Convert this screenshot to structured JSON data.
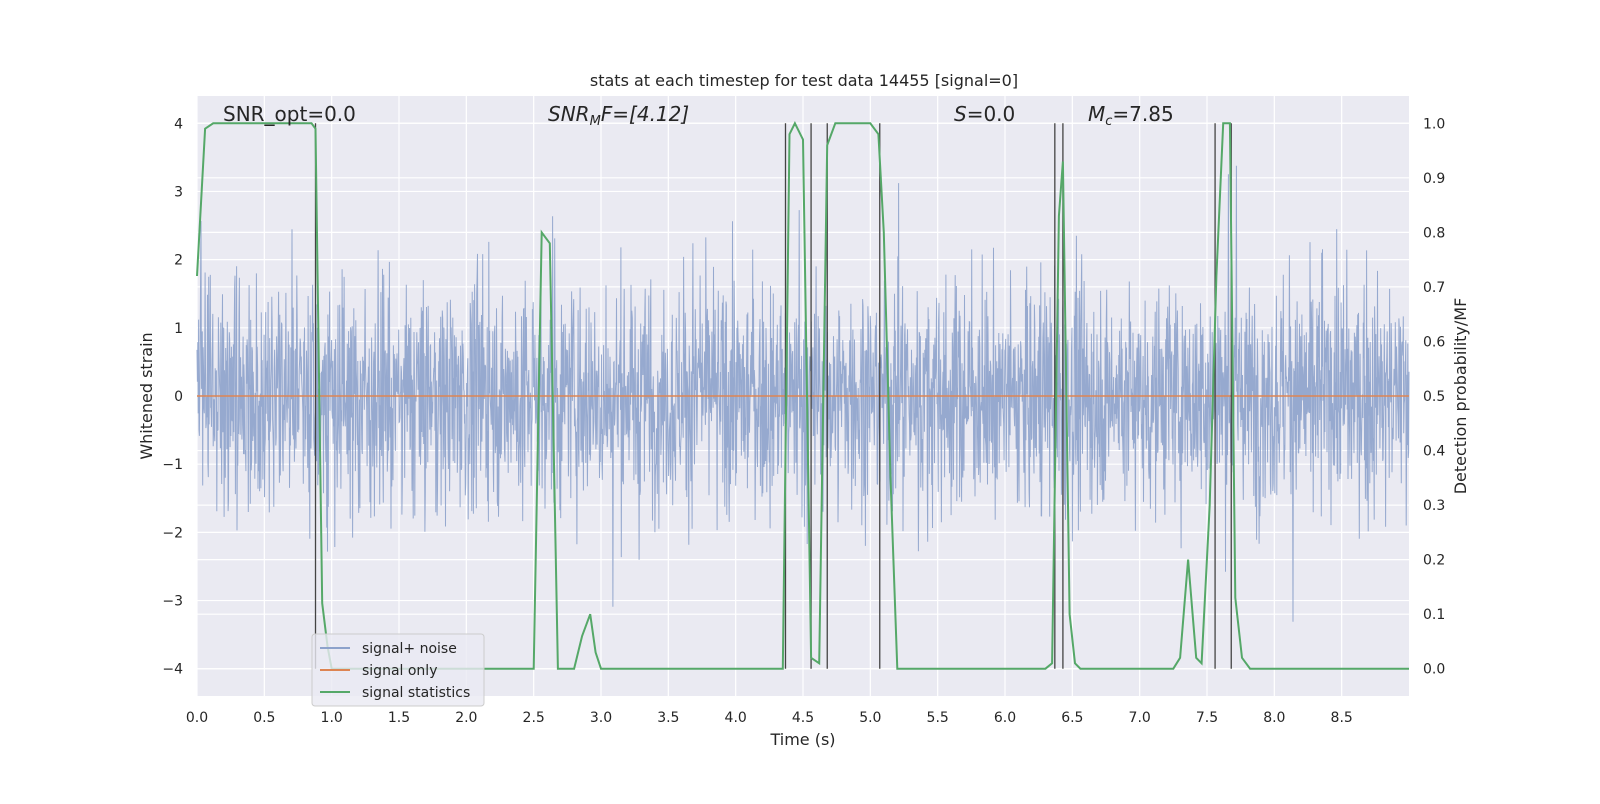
{
  "chart_data": {
    "type": "line",
    "title": "stats at each timestep for test data 14455 [signal=0]",
    "xlabel": "Time (s)",
    "ylabel": "Whitened strain",
    "ylabel_right": "Detection probability/MF",
    "xlim": [
      0.0,
      9.0
    ],
    "ylim": [
      -4.4,
      4.4
    ],
    "ylim_right": [
      -0.05,
      1.05
    ],
    "xticks": [
      "0.0",
      "0.5",
      "1.0",
      "1.5",
      "2.0",
      "2.5",
      "3.0",
      "3.5",
      "4.0",
      "4.5",
      "5.0",
      "5.5",
      "6.0",
      "6.5",
      "7.0",
      "7.5",
      "8.0",
      "8.5"
    ],
    "yticks": [
      "4",
      "3",
      "2",
      "1",
      "0",
      "−1",
      "−2",
      "−3",
      "−4"
    ],
    "yticks_right": [
      "1.0",
      "0.9",
      "0.8",
      "0.7",
      "0.6",
      "0.5",
      "0.4",
      "0.3",
      "0.2",
      "0.1",
      "0.0"
    ],
    "annotations": {
      "snr_opt": "SNR_opt=0.0",
      "snr_mf_base": "SNR",
      "snr_mf_sub": "M",
      "snr_mf_rest": "F=[4.12]",
      "s_base": "S",
      "s_rest": "=0.0",
      "mc_base": "M",
      "mc_sub": "c",
      "mc_rest": "=7.85"
    },
    "legend": [
      "signal+ noise",
      "signal only",
      "signal statistics"
    ],
    "legend_placement": "bottom-left",
    "colors": {
      "noise": "#8da2cb",
      "signal": "#dd8452",
      "stats": "#55a868",
      "vlines": "#444444",
      "background": "#eaeaf2",
      "grid": "#ffffff"
    },
    "series": [
      {
        "name": "signal+ noise",
        "note": "whitened noise, roughly +/-1.6 with spikes to about +/-3.9",
        "envelope": [
          -3.9,
          3.9
        ]
      },
      {
        "name": "signal only",
        "x": [
          0.0,
          9.0
        ],
        "y": [
          0.0,
          0.0
        ]
      },
      {
        "name": "signal statistics",
        "axis": "right",
        "x": [
          0.0,
          0.06,
          0.12,
          0.5,
          0.85,
          0.88,
          0.93,
          0.97,
          1.0,
          2.45,
          2.5,
          2.56,
          2.62,
          2.68,
          2.8,
          2.86,
          2.92,
          2.96,
          3.0,
          4.35,
          4.4,
          4.44,
          4.5,
          4.56,
          4.62,
          4.68,
          4.74,
          4.8,
          5.0,
          5.06,
          5.1,
          5.15,
          5.2,
          5.25,
          6.3,
          6.35,
          6.4,
          6.43,
          6.48,
          6.52,
          6.56,
          7.25,
          7.3,
          7.36,
          7.42,
          7.46,
          7.52,
          7.57,
          7.62,
          7.67,
          7.71,
          7.76,
          7.82,
          9.0
        ],
        "y": [
          0.72,
          0.99,
          1.0,
          1.0,
          1.0,
          0.99,
          0.12,
          0.04,
          0.0,
          0.0,
          0.0,
          0.8,
          0.78,
          0.0,
          0.0,
          0.06,
          0.1,
          0.03,
          0.0,
          0.0,
          0.98,
          1.0,
          0.97,
          0.02,
          0.01,
          0.96,
          1.0,
          1.0,
          1.0,
          0.98,
          0.8,
          0.35,
          0.0,
          0.0,
          0.0,
          0.01,
          0.83,
          0.93,
          0.1,
          0.01,
          0.0,
          0.0,
          0.02,
          0.2,
          0.02,
          0.01,
          0.3,
          0.72,
          1.0,
          1.0,
          0.13,
          0.02,
          0.0,
          0.0
        ]
      }
    ],
    "vlines_x": [
      0.88,
      4.37,
      4.56,
      4.68,
      5.07,
      6.37,
      6.43,
      7.56,
      7.68
    ]
  }
}
